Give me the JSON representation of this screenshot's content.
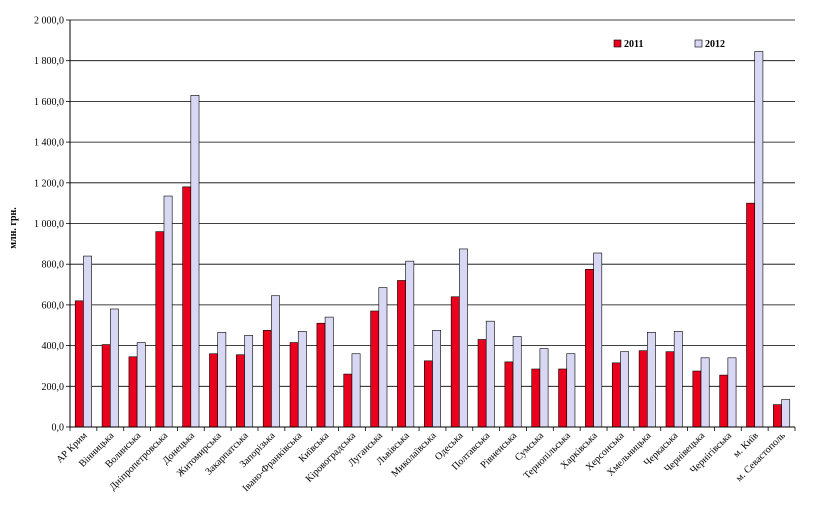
{
  "chart_data": {
    "type": "bar",
    "title": "",
    "xlabel": "",
    "ylabel": "млн. грн.",
    "ylim": [
      0,
      2000
    ],
    "y_ticks": [
      "0,0",
      "200,0",
      "400,0",
      "600,0",
      "800,0",
      "1 000,0",
      "1 200,0",
      "1 400,0",
      "1 600,0",
      "1 800,0",
      "2 000,0"
    ],
    "grid": true,
    "legend_position": "top-right",
    "categories": [
      "АР Крим",
      "Вінницька",
      "Волинська",
      "Дніпропетровська",
      "Донецька",
      "Житомирська",
      "Закарпатська",
      "Запорізька",
      "Івано-Франківська",
      "Київська",
      "Кіровоградська",
      "Луганська",
      "Львівська",
      "Миколаївська",
      "Одеська",
      "Полтавська",
      "Рівненська",
      "Сумська",
      "Тернопільська",
      "Харківська",
      "Херсонська",
      "Хмельницька",
      "Черкаська",
      "Чернівецька",
      "Чернігівська",
      "м. Київ",
      "м. Севастополь"
    ],
    "series": [
      {
        "name": "2011",
        "color": "#e8001c",
        "values": [
          620,
          405,
          345,
          960,
          1180,
          360,
          355,
          475,
          415,
          510,
          260,
          570,
          720,
          325,
          640,
          430,
          320,
          285,
          285,
          775,
          315,
          375,
          370,
          275,
          255,
          1100,
          110
        ]
      },
      {
        "name": "2012",
        "color": "#d8d8f5",
        "values": [
          840,
          580,
          415,
          1135,
          1630,
          465,
          450,
          645,
          470,
          540,
          360,
          685,
          815,
          475,
          875,
          520,
          445,
          385,
          360,
          855,
          370,
          465,
          470,
          340,
          340,
          1845,
          135
        ]
      }
    ]
  }
}
